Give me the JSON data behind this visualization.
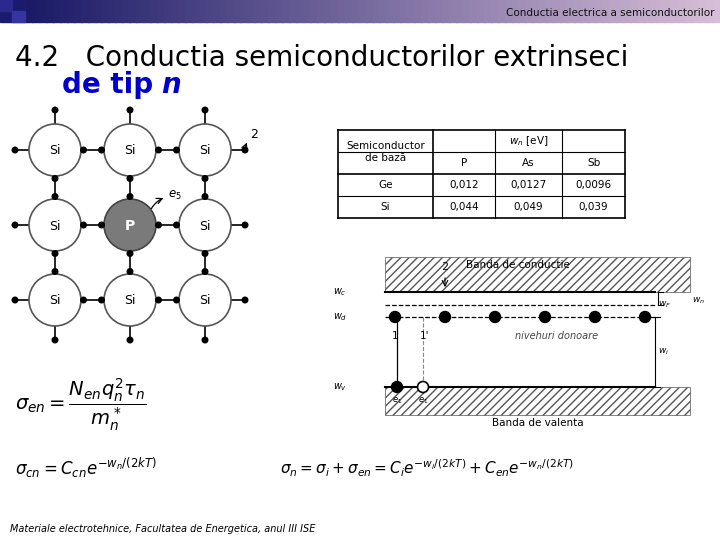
{
  "header_text": "Conductia electrica a semiconductorilor",
  "title_line1": "4.2   Conductia semiconductorilor extrinseci",
  "title_line2_normal": "de tip ",
  "title_line2_italic": "n",
  "footer_text": "Materiale electrotehnice, Facultatea de Energetica, anul III ISE",
  "bg_color": "#e8e8e8",
  "table_data": [
    [
      "Ge",
      "0,012",
      "0,0127",
      "0,0096"
    ],
    [
      "Si",
      "0,044",
      "0,049",
      "0,039"
    ]
  ],
  "formula1_left": "$\\sigma_{en} = \\dfrac{N_{en}q_n^2\\tau_n}{m_n^*}$",
  "formula2_left": "$\\sigma_{cn} = C_{cn}e^{-w_n/(2kT)}$",
  "formula_right": "$\\sigma_n = \\sigma_i + \\sigma_{en} = C_i e^{-w_i/(2kT)} + C_{en}e^{-w_n/(2kT)}$"
}
